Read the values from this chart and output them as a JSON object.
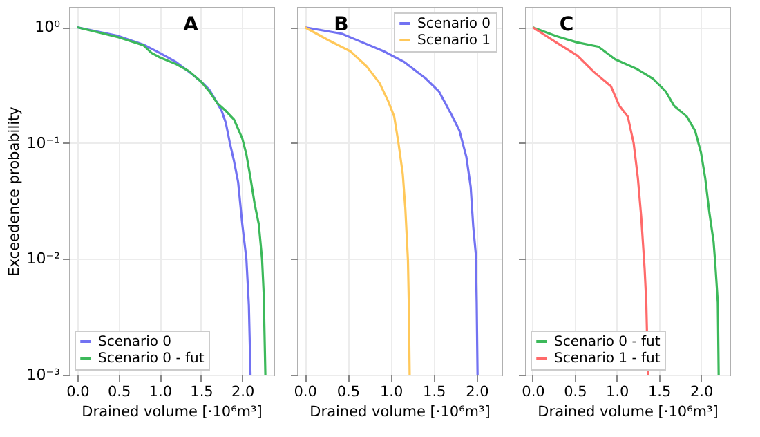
{
  "chart_data": [
    {
      "type": "line",
      "title": "A",
      "xlabel": "Drained volume [·10⁶m³]",
      "ylabel": "Exceedence probability",
      "log": "y",
      "grid": true,
      "legend": "bottom left",
      "line_style": "solid",
      "marker": "none",
      "xlim": [
        -0.1,
        2.38
      ],
      "xticks": [
        {
          "value": 0,
          "label": "0.0"
        },
        {
          "value": 0.5,
          "label": "0.5"
        },
        {
          "value": 1,
          "label": "1.0"
        },
        {
          "value": 1.5,
          "label": "1.5"
        },
        {
          "value": 2,
          "label": "2.0"
        }
      ],
      "ylim": [
        0.001,
        1.5
      ],
      "yticks": [
        {
          "value": 0.001,
          "label": "10⁻³"
        },
        {
          "value": 0.01,
          "label": "10⁻²"
        },
        {
          "value": 0.1,
          "label": "10⁻¹"
        },
        {
          "value": 1,
          "label": "10⁰"
        }
      ],
      "series": [
        {
          "name": "Scenario 0",
          "color": "#7272f2",
          "x": [
            0,
            0.5,
            0.8,
            1.0,
            1.2,
            1.4,
            1.5,
            1.6,
            1.7,
            1.75,
            1.8,
            1.82,
            1.85,
            1.9,
            1.95,
            2.0,
            2.05,
            2.08,
            2.1
          ],
          "values": [
            1,
            0.84,
            0.71,
            0.6,
            0.5,
            0.39,
            0.34,
            0.29,
            0.22,
            0.19,
            0.15,
            0.128,
            0.1,
            0.07,
            0.046,
            0.02,
            0.01,
            0.004,
            0.001
          ]
        },
        {
          "name": "Scenario 0 - fut",
          "color": "#3cb95a",
          "x": [
            0,
            0.5,
            0.8,
            0.9,
            1.0,
            1.2,
            1.35,
            1.5,
            1.6,
            1.7,
            1.8,
            1.9,
            2.0,
            2.05,
            2.1,
            2.15,
            2.2,
            2.24,
            2.26,
            2.28
          ],
          "values": [
            1,
            0.82,
            0.7,
            0.6,
            0.55,
            0.48,
            0.42,
            0.34,
            0.28,
            0.22,
            0.19,
            0.16,
            0.11,
            0.08,
            0.05,
            0.03,
            0.02,
            0.01,
            0.005,
            0.001
          ]
        }
      ]
    },
    {
      "type": "line",
      "title": "B",
      "xlabel": "Drained volume [·10⁶m³]",
      "log": "y",
      "grid": true,
      "legend": "top right",
      "line_style": "solid",
      "marker": "none",
      "tick_labels": "x",
      "xlim": [
        -0.09,
        2.29
      ],
      "xticks": [
        {
          "value": 0,
          "label": "0.0"
        },
        {
          "value": 0.5,
          "label": "0.5"
        },
        {
          "value": 1,
          "label": "1.0"
        },
        {
          "value": 1.5,
          "label": "1.5"
        },
        {
          "value": 2,
          "label": "2.0"
        }
      ],
      "ylim": [
        0.001,
        1.5
      ],
      "yticks": [
        {
          "value": 0.001,
          "label": null
        },
        {
          "value": 0.01,
          "label": null
        },
        {
          "value": 0.1,
          "label": null
        },
        {
          "value": 1,
          "label": null
        }
      ],
      "series": [
        {
          "name": "Scenario 0",
          "color": "#7272f2",
          "x": [
            0,
            0.43,
            0.92,
            1.16,
            1.41,
            1.56,
            1.7,
            1.8,
            1.88,
            1.93,
            1.96,
            1.99,
            2.0,
            2.01
          ],
          "values": [
            1,
            0.88,
            0.62,
            0.5,
            0.36,
            0.28,
            0.18,
            0.128,
            0.076,
            0.042,
            0.019,
            0.011,
            0.0042,
            0.001
          ]
        },
        {
          "name": "Scenario 1",
          "color": "#ffc85a",
          "x": [
            0,
            0.28,
            0.53,
            0.72,
            0.87,
            0.97,
            1.04,
            1.09,
            1.14,
            1.17,
            1.2,
            1.21,
            1.22
          ],
          "values": [
            1,
            0.77,
            0.62,
            0.46,
            0.33,
            0.23,
            0.17,
            0.1,
            0.054,
            0.027,
            0.0098,
            0.0042,
            0.001
          ]
        }
      ]
    },
    {
      "type": "line",
      "title": "C",
      "xlabel": "Drained volume [·10⁶m³]",
      "log": "y",
      "grid": true,
      "legend": "bottom left",
      "line_style": "solid",
      "marker": "none",
      "tick_labels": "x",
      "xlim": [
        -0.09,
        2.34
      ],
      "xticks": [
        {
          "value": 0,
          "label": "0.0"
        },
        {
          "value": 0.5,
          "label": "0.5"
        },
        {
          "value": 1,
          "label": "1.0"
        },
        {
          "value": 1.5,
          "label": "1.5"
        },
        {
          "value": 2,
          "label": "2.0"
        }
      ],
      "ylim": [
        0.001,
        1.5
      ],
      "yticks": [
        {
          "value": 0.001,
          "label": null
        },
        {
          "value": 0.01,
          "label": null
        },
        {
          "value": 0.1,
          "label": null
        },
        {
          "value": 1,
          "label": null
        }
      ],
      "series": [
        {
          "name": "Scenario 0 - fut",
          "color": "#3cb95a",
          "x": [
            0,
            0.28,
            0.53,
            0.78,
            0.98,
            1.23,
            1.43,
            1.58,
            1.68,
            1.83,
            1.93,
            2.0,
            2.05,
            2.1,
            2.15,
            2.17,
            2.2,
            2.21
          ],
          "values": [
            1,
            0.84,
            0.74,
            0.68,
            0.53,
            0.44,
            0.36,
            0.28,
            0.21,
            0.17,
            0.128,
            0.083,
            0.05,
            0.025,
            0.014,
            0.009,
            0.0042,
            0.001
          ]
        },
        {
          "name": "Scenario 1 - fut",
          "color": "#ff6a6a",
          "x": [
            0,
            0.28,
            0.53,
            0.73,
            0.93,
            1.03,
            1.13,
            1.2,
            1.25,
            1.29,
            1.33,
            1.35,
            1.37
          ],
          "values": [
            1,
            0.74,
            0.57,
            0.41,
            0.31,
            0.21,
            0.17,
            0.1,
            0.05,
            0.023,
            0.0083,
            0.0042,
            0.001
          ]
        }
      ]
    }
  ]
}
